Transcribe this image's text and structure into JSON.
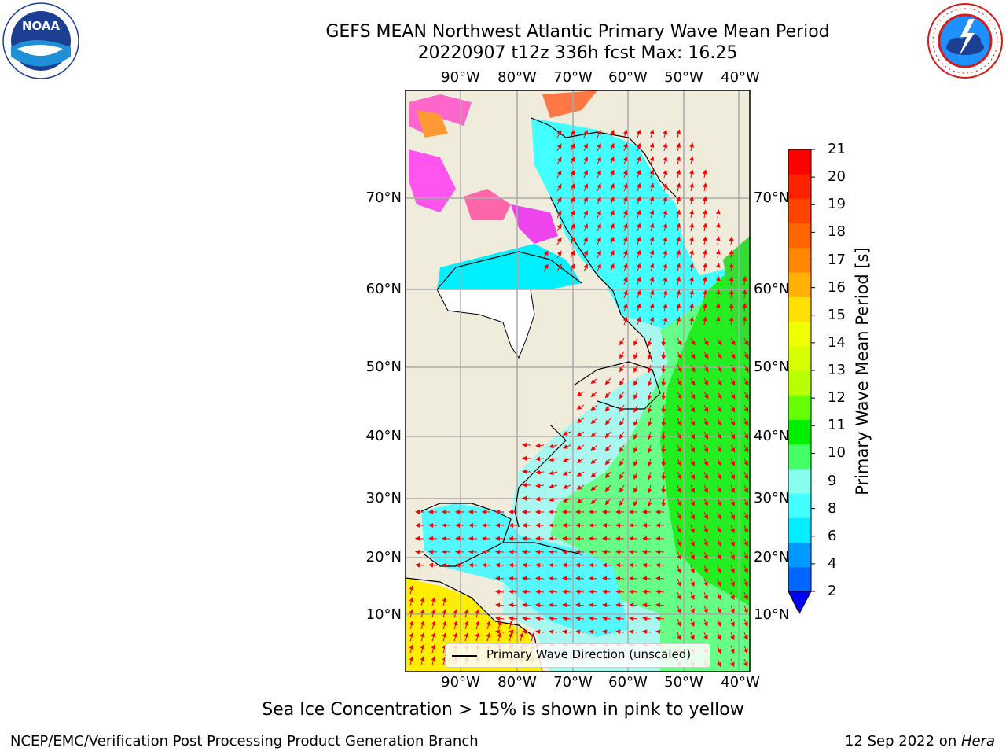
{
  "title": {
    "line1": "GEFS MEAN Northwest Atlantic Primary Wave Mean Period",
    "line2": "20220907 t12z 336h fcst   Max: 16.25"
  },
  "logos": {
    "noaa": {
      "text": "NOAA",
      "ring_text": "NATIONAL OCEANIC AND ATMOSPHERIC ADMINISTRATION · U.S. DEPARTMENT OF COMMERCE"
    },
    "nws": {
      "ring_text": "NATIONAL WEATHER SERVICE"
    }
  },
  "map": {
    "lon_labels": [
      "90°W",
      "80°W",
      "70°W",
      "60°W",
      "50°W",
      "40°W"
    ],
    "lat_labels": [
      "70°N",
      "60°N",
      "50°N",
      "40°N",
      "30°N",
      "20°N",
      "10°N"
    ],
    "legend": "Primary Wave Direction (unscaled)",
    "colors": {
      "land": "#efecdc",
      "grid": "#aaaaaa",
      "arrows": "#ff0000"
    }
  },
  "colorbar": {
    "label": "Primary Wave Mean Period [s]",
    "ticks": [
      "21",
      "20",
      "19",
      "18",
      "17",
      "16",
      "15",
      "14",
      "13",
      "12",
      "11",
      "10",
      "9",
      "8",
      "6",
      "4",
      "2"
    ],
    "colors_top_to_bottom": [
      "#ff0000",
      "#ff2200",
      "#ff4400",
      "#ff6600",
      "#ff8800",
      "#ffb000",
      "#ffe000",
      "#f0ff00",
      "#d8ff00",
      "#b8ff00",
      "#66ff00",
      "#00ee00",
      "#44ff66",
      "#88ffee",
      "#44ffff",
      "#00eeff",
      "#0099ff",
      "#0066ff"
    ],
    "extend_color": "#0000ff"
  },
  "note": "Sea Ice Concentration > 15% is shown in pink to yellow",
  "footer": {
    "left": "NCEP/EMC/Verification Post Processing Product Generation Branch",
    "right_date": "12 Sep 2022 on ",
    "right_host": "Hera"
  }
}
